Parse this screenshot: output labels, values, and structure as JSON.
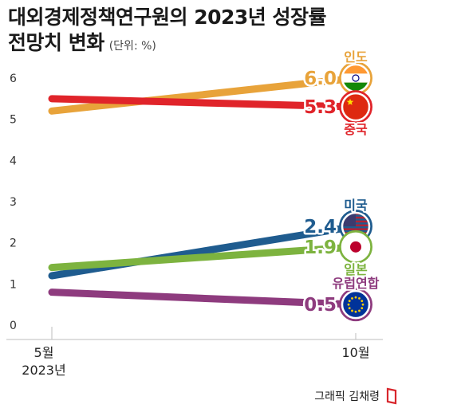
{
  "title_line1": "대외경제정책연구원의 2023년 성장률",
  "title_line2": "전망치 변화",
  "unit_label": "(단위: %)",
  "credit": "그래픽 김채령",
  "chart_data": {
    "type": "line",
    "categories": [
      "5월\n2023년",
      "10월"
    ],
    "x_labels": {
      "start_line1": "5월",
      "start_line2": "2023년",
      "end": "10월"
    },
    "ylim": [
      0,
      6
    ],
    "y_ticks": [
      0,
      1,
      2,
      3,
      4,
      5,
      6
    ],
    "grid": false,
    "series": [
      {
        "name": "인도",
        "values": [
          5.2,
          6.0
        ],
        "end_label": "6.0",
        "color": "#E8A33A",
        "flag": "india-flag-icon",
        "name_position": "above"
      },
      {
        "name": "중국",
        "values": [
          5.5,
          5.3
        ],
        "end_label": "5.3",
        "color": "#E0242A",
        "flag": "china-flag-icon",
        "name_position": "below"
      },
      {
        "name": "미국",
        "values": [
          1.2,
          2.4
        ],
        "end_label": "2.4",
        "color": "#1F5C8F",
        "flag": "usa-flag-icon",
        "name_position": "above"
      },
      {
        "name": "일본",
        "values": [
          1.4,
          1.9
        ],
        "end_label": "1.9",
        "color": "#7DB33F",
        "flag": "japan-flag-icon",
        "name_position": "below"
      },
      {
        "name": "유럽연합",
        "values": [
          0.8,
          0.5
        ],
        "end_label": "0.5",
        "color": "#8E3B7E",
        "flag": "eu-flag-icon",
        "name_position": "above"
      }
    ]
  }
}
